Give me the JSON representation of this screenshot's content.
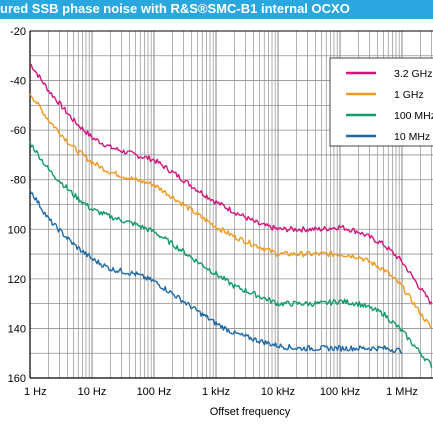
{
  "header": {
    "title": "ured SSB phase noise with R&S®SMC-B1 internal OCXO"
  },
  "colors": {
    "header_bg": "#2aa7df",
    "grid": "#909090",
    "series": [
      "#d4147e",
      "#f29a1d",
      "#109a6e",
      "#1d6aa7"
    ]
  },
  "chart_data": {
    "type": "line",
    "title": "ured SSB phase noise with R&S®SMC-B1 internal OCXO",
    "xlabel": "Offset frequency",
    "ylabel": "",
    "x_scale": "log",
    "xlim": [
      1,
      3000000
    ],
    "ylim": [
      -160,
      -20
    ],
    "grid": true,
    "legend_position": "top-right",
    "x_ticks": [
      {
        "value": 1,
        "label": "1 Hz"
      },
      {
        "value": 10,
        "label": "10 Hz"
      },
      {
        "value": 100,
        "label": "100 Hz"
      },
      {
        "value": 1000,
        "label": "1 kHz"
      },
      {
        "value": 10000,
        "label": "10 kHz"
      },
      {
        "value": 100000,
        "label": "100 kHz"
      },
      {
        "value": 1000000,
        "label": "1 MHz"
      }
    ],
    "y_ticks": [
      {
        "value": -20,
        "label": "-20"
      },
      {
        "value": -40,
        "label": "-40"
      },
      {
        "value": -60,
        "label": "-60"
      },
      {
        "value": -80,
        "label": "-80"
      },
      {
        "value": -100,
        "label": "100"
      },
      {
        "value": -120,
        "label": "120"
      },
      {
        "value": -140,
        "label": "140"
      },
      {
        "value": -160,
        "label": "160"
      }
    ],
    "series": [
      {
        "name": "3.2 GHz",
        "x": [
          1,
          2,
          5,
          10,
          20,
          50,
          100,
          200,
          500,
          1000,
          2000,
          5000,
          10000,
          20000,
          50000,
          100000,
          200000,
          500000,
          1000000,
          2000000,
          3000000
        ],
        "y": [
          -33,
          -44,
          -56,
          -63,
          -67,
          -70,
          -72,
          -77,
          -84,
          -89,
          -93,
          -98,
          -100,
          -100,
          -100,
          -99,
          -101,
          -106,
          -113,
          -124,
          -130
        ]
      },
      {
        "name": "1 GHz",
        "x": [
          1,
          2,
          5,
          10,
          20,
          50,
          100,
          200,
          500,
          1000,
          2000,
          5000,
          10000,
          20000,
          50000,
          100000,
          200000,
          500000,
          1000000,
          2000000,
          3000000
        ],
        "y": [
          -45,
          -56,
          -67,
          -73,
          -77,
          -80,
          -82,
          -87,
          -94,
          -99,
          -103,
          -107,
          -110,
          -110,
          -110,
          -110,
          -111,
          -116,
          -123,
          -134,
          -140
        ]
      },
      {
        "name": "100 MHz",
        "x": [
          1,
          2,
          5,
          10,
          20,
          50,
          100,
          200,
          500,
          1000,
          2000,
          5000,
          10000,
          20000,
          50000,
          100000,
          200000,
          500000,
          1000000,
          2000000,
          3000000
        ],
        "y": [
          -65,
          -76,
          -86,
          -92,
          -95,
          -98,
          -101,
          -106,
          -113,
          -118,
          -123,
          -127,
          -130,
          -130,
          -130,
          -129,
          -130,
          -134,
          -141,
          -150,
          -155
        ]
      },
      {
        "name": "10 MHz",
        "x": [
          1,
          2,
          5,
          10,
          20,
          50,
          100,
          200,
          500,
          1000,
          2000,
          5000,
          10000,
          20000,
          50000,
          100000,
          200000,
          500000,
          1000000
        ],
        "y": [
          -84,
          -96,
          -106,
          -112,
          -116,
          -118,
          -121,
          -126,
          -133,
          -138,
          -142,
          -145,
          -147,
          -148,
          -148,
          -148,
          -148,
          -148,
          -149
        ]
      }
    ]
  }
}
